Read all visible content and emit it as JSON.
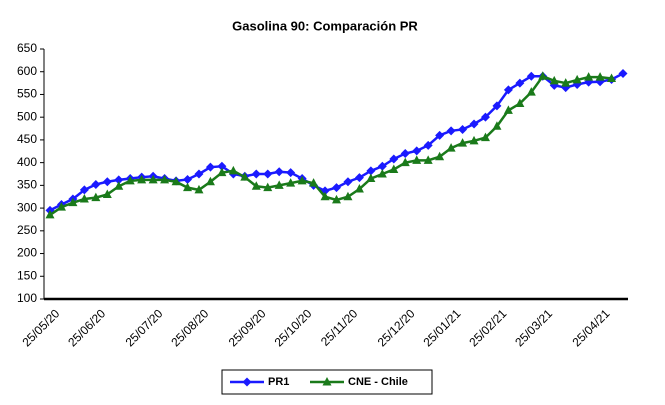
{
  "chart_data": {
    "type": "line",
    "title": "Gasolina 90: Comparación PR",
    "categories": [
      "25/05/20",
      null,
      null,
      null,
      "25/06/20",
      null,
      null,
      null,
      null,
      "25/07/20",
      null,
      null,
      null,
      "25/08/20",
      null,
      null,
      null,
      null,
      "25/09/20",
      null,
      null,
      null,
      "25/10/20",
      null,
      null,
      null,
      "25/11/20",
      null,
      null,
      null,
      null,
      "25/12/20",
      null,
      null,
      null,
      "25/01/21",
      null,
      null,
      null,
      "25/02/21",
      null,
      null,
      null,
      "25/03/21",
      null,
      null,
      null,
      null,
      "25/04/21",
      null,
      null
    ],
    "series": [
      {
        "name": "PR1",
        "color": "#1a1aff",
        "marker": "diamond",
        "values": [
          295,
          308,
          320,
          340,
          352,
          358,
          362,
          365,
          368,
          370,
          365,
          360,
          363,
          375,
          390,
          392,
          375,
          370,
          375,
          375,
          380,
          378,
          365,
          350,
          338,
          345,
          358,
          367,
          382,
          392,
          408,
          420,
          426,
          438,
          460,
          470,
          473,
          485,
          500,
          525,
          560,
          575,
          590,
          590,
          570,
          565,
          572,
          577,
          578,
          583,
          596
        ]
      },
      {
        "name": "CNE - Chile",
        "color": "#1a7a1a",
        "marker": "triangle",
        "values": [
          285,
          302,
          312,
          320,
          323,
          330,
          348,
          360,
          362,
          362,
          362,
          358,
          345,
          340,
          358,
          378,
          382,
          368,
          348,
          345,
          350,
          355,
          360,
          355,
          325,
          318,
          325,
          342,
          365,
          375,
          385,
          400,
          405,
          405,
          413,
          432,
          443,
          448,
          455,
          480,
          515,
          530,
          555,
          590,
          580,
          575,
          582,
          588,
          588,
          585,
          null
        ]
      }
    ],
    "ylim": [
      100,
      650
    ],
    "yticks": [
      100,
      150,
      200,
      250,
      300,
      350,
      400,
      450,
      500,
      550,
      600,
      650
    ],
    "grid": false
  }
}
